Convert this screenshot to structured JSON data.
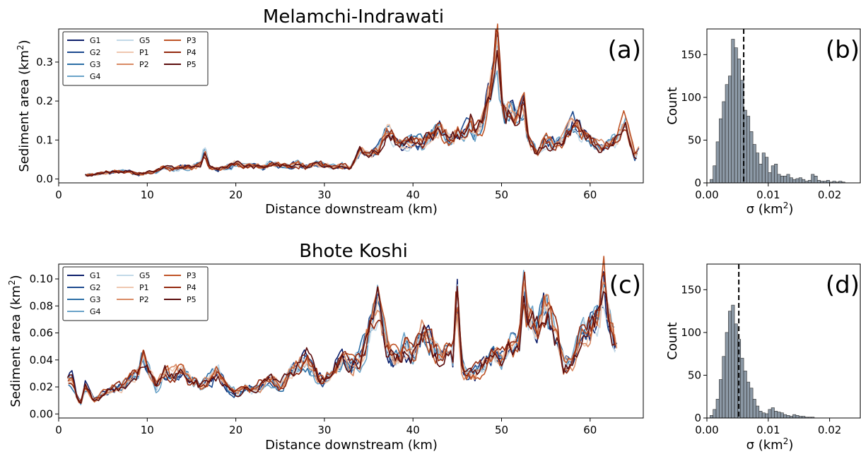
{
  "panels": {
    "top": {
      "title": "Melamchi-Indrawati",
      "line_label": "(a)",
      "hist_label": "(b)",
      "ylabel_base": "Sediment area (km",
      "ylabel_sup": "2",
      "ylabel_end": ")",
      "xlabel": "Distance downstream (km)",
      "hist_ylabel": "Count",
      "hist_xlabel_base": "σ (km",
      "hist_xlabel_sup": "2",
      "hist_xlabel_end": ")"
    },
    "bottom": {
      "title": "Bhote Koshi",
      "line_label": "(c)",
      "hist_label": "(d)",
      "ylabel_base": "Sediment area (km",
      "ylabel_sup": "2",
      "ylabel_end": ")",
      "xlabel": "Distance downstream (km)",
      "hist_ylabel": "Count",
      "hist_xlabel_base": "σ (km",
      "hist_xlabel_sup": "2",
      "hist_xlabel_end": ")"
    }
  },
  "series_colors": {
    "G1": "#0d1f6b",
    "G2": "#1d4a8f",
    "G3": "#2c6fa6",
    "G4": "#6aa3c8",
    "G5": "#c2d9e8",
    "P1": "#efc7b0",
    "P2": "#d98a64",
    "P3": "#bf5427",
    "P4": "#93290f",
    "P5": "#5c0d0d"
  },
  "chart_data": [
    {
      "type": "line",
      "title": "Melamchi-Indrawati",
      "xlabel": "Distance downstream (km)",
      "ylabel": "Sediment area (km2)",
      "xlim": [
        0,
        66
      ],
      "ylim": [
        -0.01,
        0.385
      ],
      "xticks": [
        0,
        10,
        20,
        30,
        40,
        50,
        60
      ],
      "yticks": [
        0.0,
        0.1,
        0.2,
        0.3
      ],
      "ytick_labels": [
        "0.0",
        "0.1",
        "0.2",
        "0.3"
      ],
      "legend_position": "top-left",
      "series": [
        {
          "name": "G1"
        },
        {
          "name": "G2"
        },
        {
          "name": "G3"
        },
        {
          "name": "G4"
        },
        {
          "name": "G5"
        },
        {
          "name": "P1"
        },
        {
          "name": "P2"
        },
        {
          "name": "P3"
        },
        {
          "name": "P4"
        },
        {
          "name": "P5"
        }
      ],
      "profile": {
        "x": [
          3,
          4,
          5,
          6,
          7,
          8,
          9,
          10,
          11,
          12,
          13,
          14,
          15,
          16,
          16.5,
          17,
          18,
          19,
          20,
          21,
          22,
          23,
          24,
          25,
          26,
          27,
          28,
          29,
          30,
          31,
          32,
          33,
          34,
          35,
          36,
          37,
          38,
          39,
          40,
          41,
          42,
          43,
          44,
          45,
          46,
          46.5,
          47,
          47.5,
          48,
          48.5,
          49,
          49.5,
          50,
          50.5,
          51,
          51.5,
          52,
          52.5,
          53,
          54,
          55,
          56,
          57,
          58,
          59,
          60,
          61,
          62,
          63,
          64,
          64.5,
          65,
          65.5
        ],
        "y": [
          0.01,
          0.012,
          0.015,
          0.018,
          0.02,
          0.018,
          0.012,
          0.015,
          0.02,
          0.03,
          0.025,
          0.03,
          0.028,
          0.04,
          0.078,
          0.03,
          0.025,
          0.03,
          0.04,
          0.032,
          0.035,
          0.03,
          0.04,
          0.035,
          0.03,
          0.04,
          0.03,
          0.04,
          0.035,
          0.03,
          0.035,
          0.03,
          0.07,
          0.06,
          0.07,
          0.12,
          0.1,
          0.09,
          0.1,
          0.09,
          0.11,
          0.13,
          0.1,
          0.11,
          0.12,
          0.15,
          0.12,
          0.13,
          0.15,
          0.22,
          0.26,
          0.36,
          0.2,
          0.16,
          0.18,
          0.16,
          0.17,
          0.19,
          0.1,
          0.06,
          0.1,
          0.09,
          0.1,
          0.14,
          0.12,
          0.1,
          0.08,
          0.09,
          0.1,
          0.15,
          0.1,
          0.06,
          0.07
        ]
      }
    },
    {
      "type": "histogram",
      "xlabel": "σ (km2)",
      "ylabel": "Count",
      "xlim": [
        0,
        0.025
      ],
      "ylim": [
        0,
        180
      ],
      "xticks": [
        0.0,
        0.01,
        0.02
      ],
      "xtick_labels": [
        "0.00",
        "0.01",
        "0.02"
      ],
      "yticks": [
        0,
        50,
        100,
        150
      ],
      "bin_start": 0.0005,
      "bin_width": 0.0005,
      "counts": [
        4,
        20,
        48,
        75,
        95,
        115,
        125,
        168,
        158,
        145,
        120,
        85,
        78,
        60,
        45,
        35,
        22,
        35,
        30,
        12,
        20,
        22,
        10,
        8,
        8,
        10,
        6,
        4,
        5,
        6,
        4,
        2,
        3,
        10,
        8,
        3,
        2,
        2,
        3,
        1,
        2,
        1,
        2,
        1
      ],
      "mean_line": 0.006
    },
    {
      "type": "line",
      "title": "Bhote Koshi",
      "xlabel": "Distance downstream (km)",
      "ylabel": "Sediment area (km2)",
      "xlim": [
        0,
        66
      ],
      "ylim": [
        -0.003,
        0.111
      ],
      "xticks": [
        0,
        10,
        20,
        30,
        40,
        50,
        60
      ],
      "yticks": [
        0.0,
        0.02,
        0.04,
        0.06,
        0.08,
        0.1
      ],
      "ytick_labels": [
        "0.00",
        "0.02",
        "0.04",
        "0.06",
        "0.08",
        "0.10"
      ],
      "legend_position": "top-left",
      "series": [
        {
          "name": "G1"
        },
        {
          "name": "G2"
        },
        {
          "name": "G3"
        },
        {
          "name": "G4"
        },
        {
          "name": "G5"
        },
        {
          "name": "P1"
        },
        {
          "name": "P2"
        },
        {
          "name": "P3"
        },
        {
          "name": "P4"
        },
        {
          "name": "P5"
        }
      ],
      "profile": {
        "x": [
          1,
          1.5,
          2,
          2.5,
          3,
          3.5,
          4,
          5,
          6,
          7,
          8,
          9,
          9.5,
          10,
          11,
          12,
          13,
          14,
          15,
          16,
          17,
          18,
          19,
          20,
          21,
          22,
          23,
          24,
          25,
          26,
          27,
          28,
          29,
          30,
          31,
          32,
          33,
          34,
          35,
          35.5,
          36,
          36.5,
          37,
          38,
          39,
          40,
          41,
          42,
          43,
          44,
          44.5,
          45,
          45.5,
          46,
          47,
          48,
          49,
          50,
          51,
          52,
          52.5,
          53,
          54,
          55,
          56,
          57,
          58,
          59,
          60,
          61,
          61.5,
          62,
          62.5,
          63
        ],
        "y": [
          0.025,
          0.027,
          0.012,
          0.008,
          0.02,
          0.015,
          0.01,
          0.015,
          0.02,
          0.02,
          0.025,
          0.03,
          0.042,
          0.035,
          0.02,
          0.03,
          0.028,
          0.032,
          0.025,
          0.02,
          0.025,
          0.03,
          0.02,
          0.015,
          0.02,
          0.018,
          0.022,
          0.025,
          0.02,
          0.03,
          0.035,
          0.04,
          0.03,
          0.025,
          0.035,
          0.04,
          0.035,
          0.04,
          0.06,
          0.07,
          0.08,
          0.065,
          0.05,
          0.04,
          0.05,
          0.045,
          0.06,
          0.055,
          0.04,
          0.05,
          0.04,
          0.09,
          0.035,
          0.03,
          0.03,
          0.035,
          0.045,
          0.04,
          0.05,
          0.05,
          0.095,
          0.07,
          0.065,
          0.08,
          0.06,
          0.035,
          0.04,
          0.06,
          0.065,
          0.07,
          0.098,
          0.075,
          0.06,
          0.05
        ]
      }
    },
    {
      "type": "histogram",
      "xlabel": "σ (km2)",
      "ylabel": "Count",
      "xlim": [
        0,
        0.025
      ],
      "ylim": [
        0,
        180
      ],
      "xticks": [
        0.0,
        0.01,
        0.02
      ],
      "xtick_labels": [
        "0.00",
        "0.01",
        "0.02"
      ],
      "yticks": [
        0,
        50,
        100,
        150
      ],
      "bin_start": 0.0005,
      "bin_width": 0.0005,
      "counts": [
        3,
        10,
        22,
        45,
        72,
        100,
        125,
        132,
        110,
        92,
        70,
        55,
        42,
        35,
        22,
        14,
        8,
        6,
        5,
        10,
        12,
        8,
        7,
        6,
        4,
        3,
        2,
        4,
        3,
        2,
        2,
        1,
        1,
        1
      ],
      "mean_line": 0.0052
    }
  ]
}
